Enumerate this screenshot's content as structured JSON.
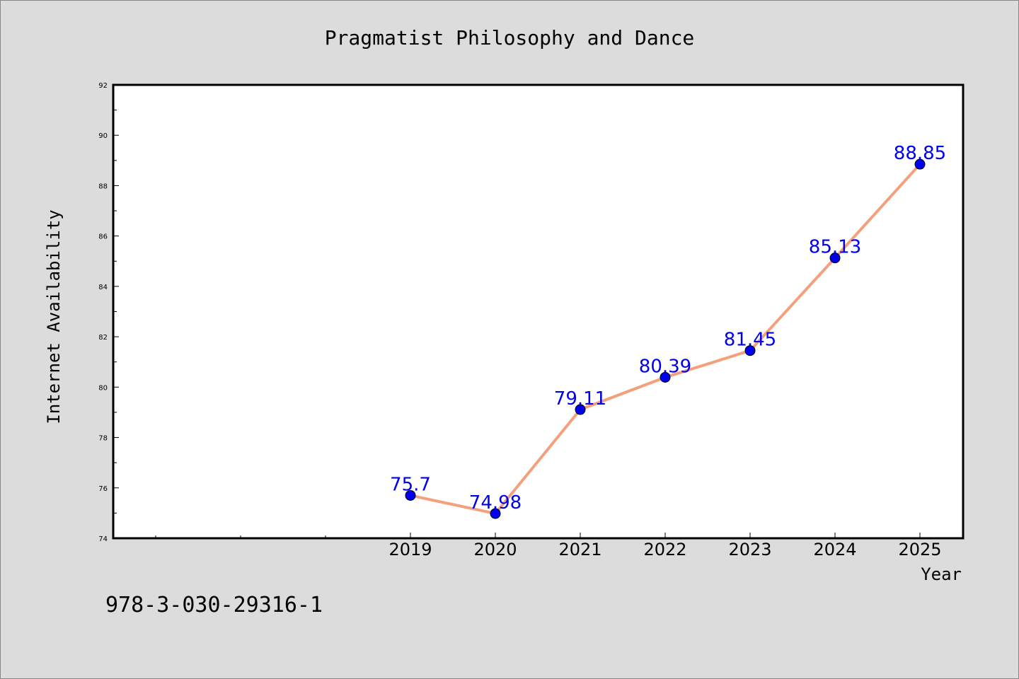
{
  "chart_data": {
    "type": "line",
    "title": "Pragmatist Philosophy and Dance",
    "xlabel": "Year",
    "ylabel": "Internet Availability",
    "x": [
      "2019",
      "2020",
      "2021",
      "2022",
      "2023",
      "2024",
      "2025"
    ],
    "series": [
      {
        "values": [
          75.7,
          74.98,
          79.11,
          80.39,
          81.45,
          85.13,
          88.85
        ]
      }
    ],
    "data_labels": [
      "75.7",
      "74.98",
      "79.11",
      "80.39",
      "81.45",
      "85.13",
      "88.85"
    ],
    "ylim": [
      74,
      92
    ],
    "yticks": [
      "74",
      "76",
      "78",
      "80",
      "82",
      "84",
      "86",
      "88",
      "90",
      "92"
    ],
    "grid": false,
    "legend": "none",
    "colors": {
      "line": "#f4a07c",
      "marker": "#0000ee",
      "labels": "#0000ee",
      "background": "#dcdcdc",
      "plot": "#ffffff"
    }
  },
  "footer": {
    "code": "978-3-030-29316-1"
  }
}
